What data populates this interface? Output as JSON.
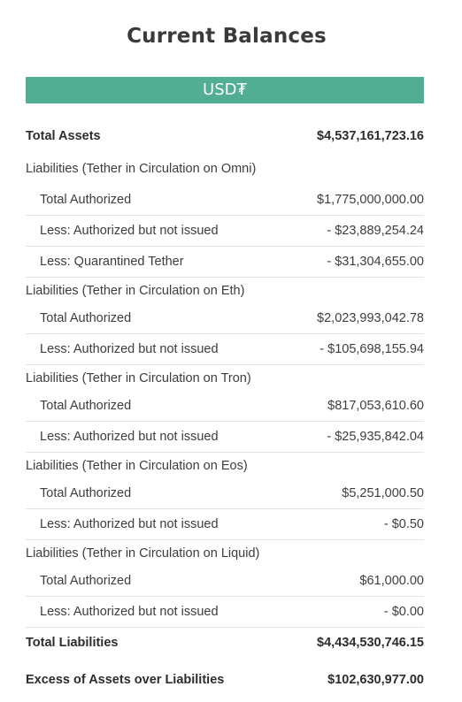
{
  "title": "Current Balances",
  "currency": "USD₮",
  "total_assets": {
    "label": "Total Assets",
    "value": "$4,537,161,723.16"
  },
  "sections": [
    {
      "heading": "Liabilities (Tether in Circulation on Omni)",
      "rows": [
        {
          "label": "Total Authorized",
          "value": "$1,775,000,000.00"
        },
        {
          "label": "Less: Authorized but not issued",
          "value": "- $23,889,254.24"
        },
        {
          "label": "Less: Quarantined Tether",
          "value": "- $31,304,655.00"
        }
      ]
    },
    {
      "heading": "Liabilities (Tether in Circulation on Eth)",
      "rows": [
        {
          "label": "Total Authorized",
          "value": "$2,023,993,042.78"
        },
        {
          "label": "Less: Authorized but not issued",
          "value": "- $105,698,155.94"
        }
      ]
    },
    {
      "heading": "Liabilities (Tether in Circulation on Tron)",
      "rows": [
        {
          "label": "Total Authorized",
          "value": "$817,053,610.60"
        },
        {
          "label": "Less: Authorized but not issued",
          "value": "- $25,935,842.04"
        }
      ]
    },
    {
      "heading": "Liabilities (Tether in Circulation on Eos)",
      "rows": [
        {
          "label": "Total Authorized",
          "value": "$5,251,000.50"
        },
        {
          "label": "Less: Authorized but not issued",
          "value": "- $0.50"
        }
      ]
    },
    {
      "heading": "Liabilities (Tether in Circulation on Liquid)",
      "rows": [
        {
          "label": "Total Authorized",
          "value": "$61,000.00"
        },
        {
          "label": "Less: Authorized but not issued",
          "value": "- $0.00"
        }
      ]
    }
  ],
  "total_liabilities": {
    "label": "Total Liabilities",
    "value": "$4,434,530,746.15"
  },
  "excess": {
    "label": "Excess of Assets over Liabilities",
    "value": "$102,630,977.00"
  }
}
